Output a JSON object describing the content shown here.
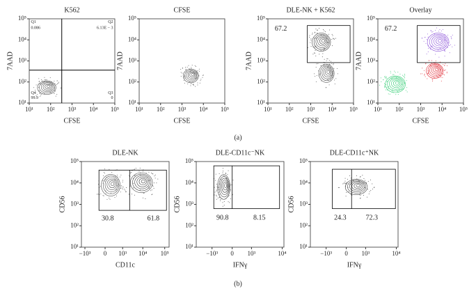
{
  "figure": {
    "panels": [
      {
        "title": "K562",
        "x_label": "CFSE",
        "y_label": "7AAD",
        "x_ticks": [
          "10¹",
          "10²",
          "10³",
          "10⁴",
          "10⁵"
        ],
        "y_ticks": [
          "10⁵",
          "10⁴",
          "10³",
          "10²",
          "10¹"
        ],
        "gate_labels": [
          "Q1",
          "0.086",
          "Q2",
          "6.13E − 3",
          "Q3",
          "0",
          "Q4",
          "99.9"
        ]
      },
      {
        "title": "CFSE",
        "x_label": "CFSE",
        "y_label": "7AAD",
        "x_ticks": [
          "10¹",
          "10²",
          "10³",
          "10⁴",
          "10⁵"
        ],
        "y_ticks": [
          "10⁵",
          "10⁴",
          "10³",
          "10²",
          "10¹"
        ],
        "gate_labels": []
      },
      {
        "title": "DLE-NK + K562",
        "x_label": "CFSE",
        "y_label": "7AAD",
        "x_ticks": [
          "10¹",
          "10²",
          "10³",
          "10⁴",
          "10⁵"
        ],
        "y_ticks": [
          "10⁵",
          "10⁴",
          "10³",
          "10²",
          "10¹"
        ],
        "gate_labels": [
          "67.2"
        ]
      },
      {
        "title": "Overlay",
        "x_label": "CFSE",
        "y_label": "7AAD",
        "x_ticks": [
          "10¹",
          "10²",
          "10³",
          "10⁴",
          "10⁵"
        ],
        "y_ticks": [
          "10⁵",
          "10⁴",
          "10³",
          "10²",
          "10¹"
        ],
        "gate_labels": [
          "67.2"
        ]
      },
      {
        "title": "DLE-NK",
        "x_label": "CD11c",
        "y_label": "CD56",
        "x_ticks": [
          "−10³",
          "0",
          "10³",
          "10⁴",
          "10⁵"
        ],
        "y_ticks": [
          "10⁵",
          "10⁴",
          "10³",
          "10²",
          "10¹"
        ],
        "gate_labels": [
          "30.8",
          "61.8"
        ]
      },
      {
        "title": "DLE-CD11c⁻NK",
        "x_label": "IFNγ",
        "y_label": "CD56",
        "x_ticks": [
          "−10³",
          "0",
          "10³",
          "10⁴"
        ],
        "y_ticks": [
          "10⁵",
          "10⁴",
          "10³",
          "10²",
          "10¹"
        ],
        "gate_labels": [
          "90.8",
          "8.15"
        ]
      },
      {
        "title": "DLE-CD11c⁺NK",
        "x_label": "IFNγ",
        "y_label": "CD56",
        "x_ticks": [
          "−10³",
          "0",
          "10³",
          "10⁴"
        ],
        "y_ticks": [
          "10⁵",
          "10⁴",
          "10³",
          "10²",
          "10¹"
        ],
        "gate_labels": [
          "24.3",
          "72.3"
        ]
      }
    ],
    "captions": [
      "(a)",
      "(b)"
    ]
  }
}
